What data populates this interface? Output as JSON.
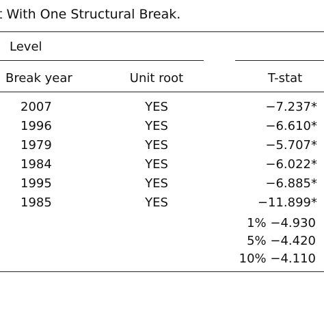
{
  "caption": "t With One Structural Break.",
  "group_label": "Level",
  "headers": {
    "break_year": "Break year",
    "unit_root": "Unit root",
    "tstat": "T-stat"
  },
  "rows": [
    {
      "year": "2007",
      "unit_root": "YES",
      "tstat": "−7.237*"
    },
    {
      "year": "1996",
      "unit_root": "YES",
      "tstat": "−6.610*"
    },
    {
      "year": "1979",
      "unit_root": "YES",
      "tstat": "−5.707*"
    },
    {
      "year": "1984",
      "unit_root": "YES",
      "tstat": "−6.022*"
    },
    {
      "year": "1995",
      "unit_root": "YES",
      "tstat": "−6.885*"
    },
    {
      "year": "1985",
      "unit_root": "YES",
      "tstat": "−11.899*"
    }
  ],
  "critical_values": [
    "1% −4.930",
    "5% −4.420",
    "10% −4.110"
  ]
}
